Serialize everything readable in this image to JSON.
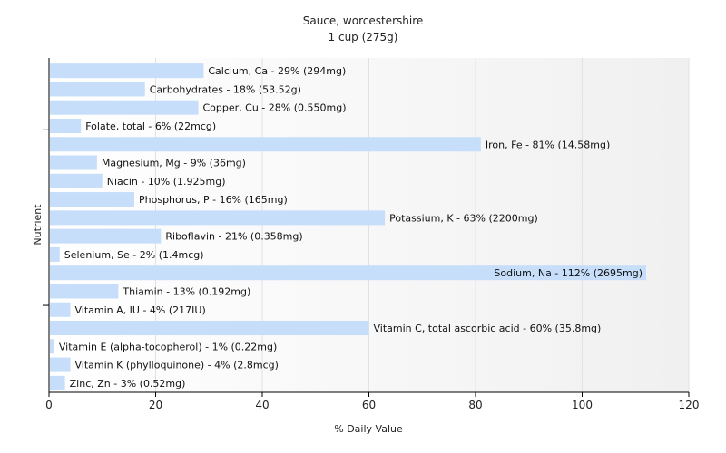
{
  "chart_data": {
    "type": "bar",
    "orientation": "horizontal",
    "title": "Sauce, worcestershire",
    "subtitle": "1 cup (275g)",
    "xlabel": "% Daily Value",
    "ylabel": "Nutrient",
    "xlim": [
      0,
      120
    ],
    "xticks": [
      0,
      20,
      40,
      60,
      80,
      100,
      120
    ],
    "grid": "vertical",
    "bar_color": "#c6defa",
    "categories": [
      "Calcium, Ca - 29% (294mg)",
      "Carbohydrates - 18% (53.52g)",
      "Copper, Cu - 28% (0.550mg)",
      "Folate, total - 6% (22mcg)",
      "Iron, Fe - 81% (14.58mg)",
      "Magnesium, Mg - 9% (36mg)",
      "Niacin - 10% (1.925mg)",
      "Phosphorus, P - 16% (165mg)",
      "Potassium, K - 63% (2200mg)",
      "Riboflavin - 21% (0.358mg)",
      "Selenium, Se - 2% (1.4mcg)",
      "Sodium, Na - 112% (2695mg)",
      "Thiamin - 13% (0.192mg)",
      "Vitamin A, IU - 4% (217IU)",
      "Vitamin C, total ascorbic acid - 60% (35.8mg)",
      "Vitamin E (alpha-tocopherol) - 1% (0.22mg)",
      "Vitamin K (phylloquinone) - 4% (2.8mcg)",
      "Zinc, Zn - 3% (0.52mg)"
    ],
    "values": [
      29,
      18,
      28,
      6,
      81,
      9,
      10,
      16,
      63,
      21,
      2,
      112,
      13,
      4,
      60,
      1,
      4,
      3
    ]
  }
}
